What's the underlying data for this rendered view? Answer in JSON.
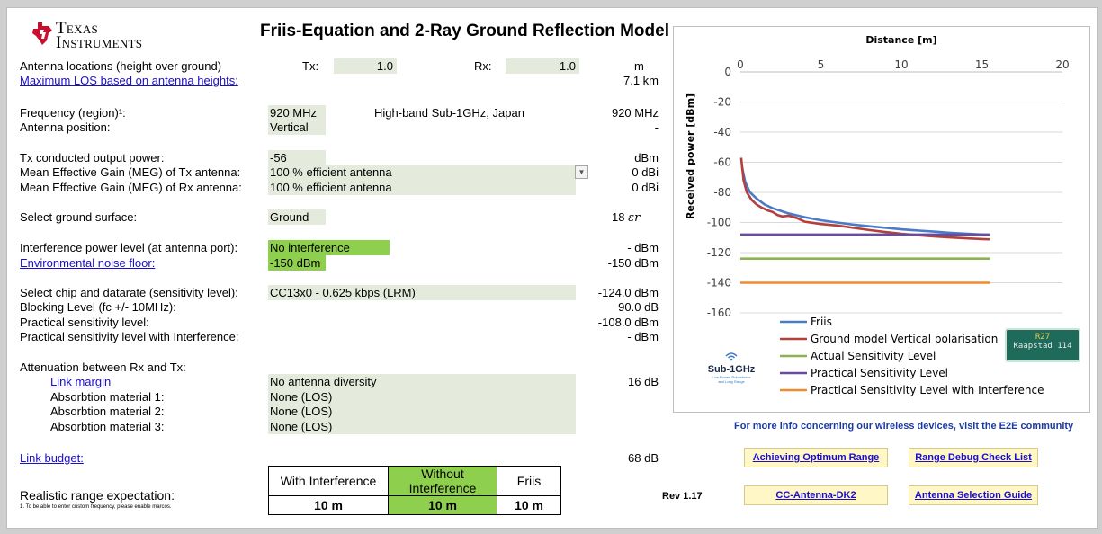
{
  "logo": {
    "line1": "Texas",
    "line2": "Instruments"
  },
  "title": "Friis-Equation and 2-Ray Ground Reflection Model",
  "labels": {
    "antenna_locations": "Antenna locations (height over ground)",
    "max_los": "Maximum LOS based on antenna heights:",
    "frequency": "Frequency (region)¹:",
    "antenna_position": "Antenna position:",
    "tx_power": "Tx conducted output power:",
    "meg_tx": "Mean Effective Gain (MEG) of Tx antenna:",
    "meg_rx": "Mean Effective Gain (MEG) of Rx antenna:",
    "ground": "Select ground surface:",
    "interference": "Interference power level (at antenna port):",
    "noise_floor": "Environmental noise floor:",
    "chip": "Select chip and datarate (sensitivity level):",
    "blocking": "Blocking Level (fc +/- 10MHz):",
    "practical": "Practical sensitivity level:",
    "practical_int": "Practical sensitivity level with Interference:",
    "attenuation": "Attenuation between Rx and Tx:",
    "link_margin": "Link margin",
    "abs1": "Absorbtion material 1:",
    "abs2": "Absorbtion material 2:",
    "abs3": "Absorbtion material 3:",
    "link_budget": "Link budget:",
    "realistic": "Realistic range expectation:",
    "footnote": "1. To be able to enter custom frequency, please enable marcos."
  },
  "inputs": {
    "tx_label": "Tx:",
    "tx_value": "1.0",
    "rx_label": "Rx:",
    "rx_value": "1.0",
    "frequency": "920 MHz",
    "region": "High-band Sub-1GHz, Japan",
    "antenna_position": "Vertical",
    "tx_power": "-56",
    "meg_tx": "100 % efficient antenna",
    "meg_rx": "100 % efficient antenna",
    "ground": "Ground",
    "interference": "No interference",
    "noise_floor": "-150 dBm",
    "chip": "CC13x0 - 0.625 kbps (LRM)",
    "link_margin": "No antenna diversity",
    "abs1": "None (LOS)",
    "abs2": "None (LOS)",
    "abs3": "None (LOS)"
  },
  "results": {
    "antenna_unit": "m",
    "max_los": "7.1 km",
    "frequency": "920 MHz",
    "antenna_position": "-",
    "tx_power": "dBm",
    "meg_tx": "0 dBi",
    "meg_rx": "0 dBi",
    "ground_value": "18",
    "ground_symbol": "εr",
    "interference": "- dBm",
    "noise_floor": "-150 dBm",
    "chip": "-124.0 dBm",
    "blocking": "90.0 dB",
    "practical": "-108.0 dBm",
    "practical_int": "- dBm",
    "link_margin": "16 dB",
    "link_budget": "68 dB"
  },
  "range_table": {
    "headers": [
      "With Interference",
      "Without Interference",
      "Friis"
    ],
    "values": [
      "10 m",
      "10 m",
      "10 m"
    ]
  },
  "rev": "Rev 1.17",
  "e2e_text": "For more info concerning our wireless devices, visit the E2E community",
  "buttons": {
    "optimum": "Achieving Optimum Range",
    "debug": "Range Debug Check List",
    "cc_antenna": "CC-Antenna-DK2",
    "antenna_guide": "Antenna Selection Guide"
  },
  "sub1ghz": {
    "brand": "Sub-1GHz",
    "tagline1": "Low Power, Robustness",
    "tagline2": "and Long Range"
  },
  "roadsign": {
    "line1": "R27",
    "line2": "Kaapstad 114"
  },
  "chart_data": {
    "type": "line",
    "title": "Distance [m]",
    "ylabel": "Received power [dBm]",
    "xlim": [
      0,
      20
    ],
    "ylim": [
      -160,
      0
    ],
    "x_ticks": [
      0,
      5,
      10,
      15,
      20
    ],
    "y_ticks": [
      0,
      -20,
      -40,
      -60,
      -80,
      -100,
      -120,
      -140,
      -160
    ],
    "grid": "horizontal",
    "legend_position": "bottom",
    "series": [
      {
        "name": "Friis",
        "color": "#4a7bc8",
        "x": [
          0.1,
          0.3,
          0.6,
          1,
          1.5,
          2,
          3,
          4,
          5,
          6,
          7,
          8,
          9,
          10,
          11,
          12,
          13,
          14,
          15,
          15.5
        ],
        "y": [
          -63,
          -73,
          -80,
          -84,
          -88,
          -90.5,
          -94,
          -96.5,
          -98.5,
          -100,
          -101.4,
          -102.5,
          -103.5,
          -104.5,
          -105.3,
          -106,
          -106.8,
          -107.4,
          -108,
          -108.3
        ]
      },
      {
        "name": "Ground model Vertical polarisation",
        "color": "#b3403c",
        "x": [
          0.05,
          0.2,
          0.4,
          0.7,
          1,
          1.3,
          1.7,
          2,
          2.3,
          2.6,
          3,
          3.5,
          4,
          5,
          6,
          7,
          8,
          9,
          10,
          11,
          12,
          13,
          14,
          15,
          15.5
        ],
        "y": [
          -57,
          -72,
          -80,
          -85,
          -88,
          -90,
          -92,
          -93,
          -95,
          -96,
          -95.5,
          -97,
          -99.5,
          -101,
          -102,
          -103.5,
          -105,
          -106.3,
          -107.5,
          -108.4,
          -109.2,
          -109.9,
          -110.5,
          -111,
          -111.2
        ]
      },
      {
        "name": "Actual Sensitivity Level",
        "color": "#8db350",
        "x": [
          0,
          15.5
        ],
        "y": [
          -124,
          -124
        ]
      },
      {
        "name": "Practical Sensitivity Level",
        "color": "#6a4c9c",
        "x": [
          0,
          15.5
        ],
        "y": [
          -108,
          -108
        ]
      },
      {
        "name": "Practical Sensitivity Level with Interference",
        "color": "#f08a2e",
        "x": [
          0,
          15.5
        ],
        "y": [
          -140,
          -140
        ]
      }
    ]
  }
}
